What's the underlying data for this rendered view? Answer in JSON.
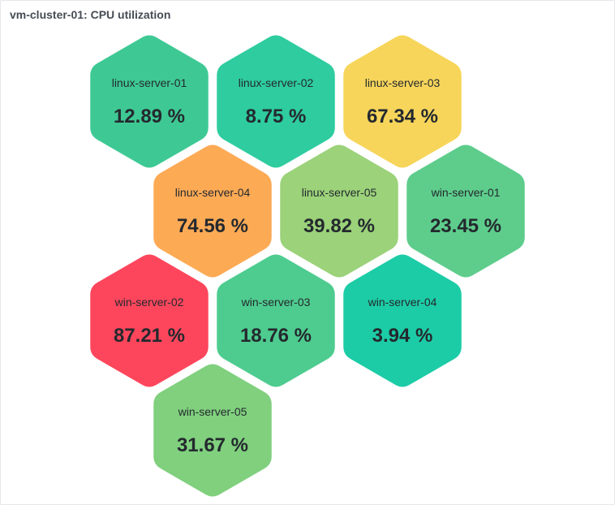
{
  "panel": {
    "title": "vm-cluster-01: CPU utilization"
  },
  "chart_data": {
    "type": "honeycomb",
    "unit": "%",
    "items": [
      {
        "name": "linux-server-01",
        "value": 12.89,
        "display": "12.89 %",
        "color": "#3ec994"
      },
      {
        "name": "linux-server-02",
        "value": 8.75,
        "display": "8.75 %",
        "color": "#2ecc9f"
      },
      {
        "name": "linux-server-03",
        "value": 67.34,
        "display": "67.34 %",
        "color": "#f7d55a"
      },
      {
        "name": "linux-server-04",
        "value": 74.56,
        "display": "74.56 %",
        "color": "#fdaa55"
      },
      {
        "name": "linux-server-05",
        "value": 39.82,
        "display": "39.82 %",
        "color": "#9bd27a"
      },
      {
        "name": "win-server-01",
        "value": 23.45,
        "display": "23.45 %",
        "color": "#5ecd8c"
      },
      {
        "name": "win-server-02",
        "value": 87.21,
        "display": "87.21 %",
        "color": "#fd465c"
      },
      {
        "name": "win-server-03",
        "value": 18.76,
        "display": "18.76 %",
        "color": "#4ecc8f"
      },
      {
        "name": "win-server-04",
        "value": 3.94,
        "display": "3.94 %",
        "color": "#1ccca6"
      },
      {
        "name": "win-server-05",
        "value": 31.67,
        "display": "31.67 %",
        "color": "#80d07e"
      }
    ]
  }
}
